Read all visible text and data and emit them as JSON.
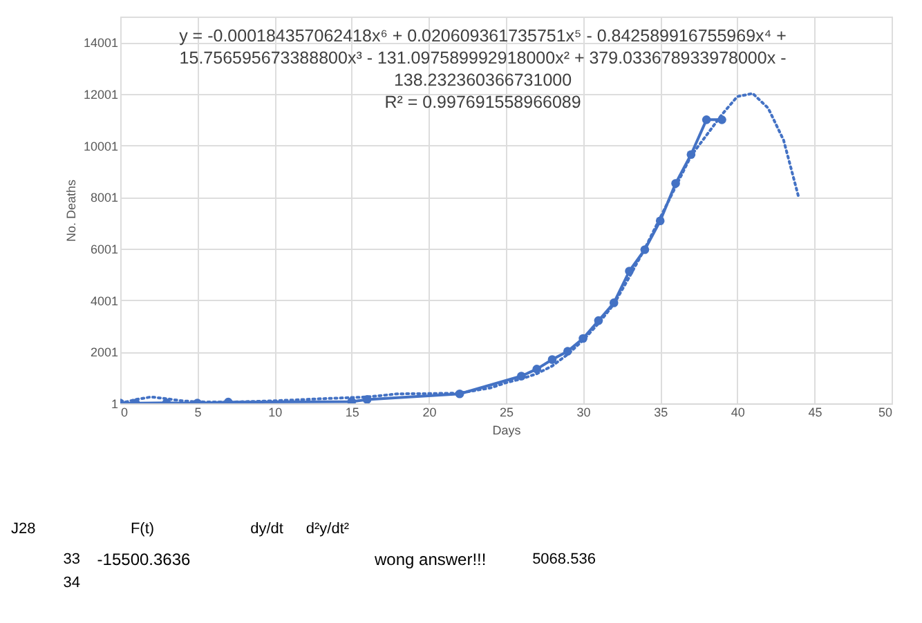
{
  "chart_data": {
    "type": "line",
    "xlabel": "Days",
    "ylabel": "No. Deaths",
    "xlim": [
      0,
      50
    ],
    "xticks": [
      0,
      5,
      10,
      15,
      20,
      25,
      30,
      35,
      40,
      45,
      50
    ],
    "ylim": [
      1,
      15001
    ],
    "yticks": [
      1,
      2001,
      4001,
      6001,
      8001,
      10001,
      12001,
      14001
    ],
    "grid": true,
    "series": [
      {
        "color": "#4472c4",
        "marker": "circle",
        "line_style": "solid",
        "x": [
          0,
          1,
          3,
          5,
          7,
          15,
          16,
          22,
          26,
          27,
          28,
          29,
          30,
          31,
          32,
          33,
          34,
          35,
          36,
          37,
          38,
          39
        ],
        "values": [
          10,
          10,
          20,
          10,
          50,
          70,
          150,
          370,
          1060,
          1330,
          1700,
          2020,
          2520,
          3210,
          3900,
          5130,
          5960,
          7080,
          8530,
          9650,
          11000,
          11000
        ]
      },
      {
        "color": "#4472c4",
        "marker": "none",
        "line_style": "dotted",
        "x": [
          0,
          1,
          2,
          3,
          4,
          5,
          7,
          10,
          13,
          16,
          18,
          20,
          22,
          24,
          25,
          26,
          27,
          28,
          29,
          30,
          31,
          32,
          33,
          34,
          35,
          36,
          37,
          38,
          39,
          40,
          41,
          42,
          43,
          44
        ],
        "values": [
          1,
          150,
          250,
          180,
          100,
          60,
          50,
          100,
          180,
          250,
          370,
          380,
          400,
          600,
          800,
          950,
          1150,
          1450,
          1900,
          2450,
          3100,
          3850,
          4900,
          6000,
          7200,
          8400,
          9600,
          10400,
          11200,
          11900,
          12020,
          11450,
          10210,
          7940
        ]
      }
    ],
    "annotations": [
      "y = -0.000184357062418x⁶ + 0.020609361735751x⁵ - 0.842589916755969x⁴ + 15.756595673388800x³ - 131.097589992918000x² + 379.033678933978000x - 138.232360366731000",
      "R² = 0.997691558966089",
      "J28",
      "F(t)",
      "dy/dt",
      "d²y/dt²",
      "33",
      "-15500.3636",
      "wong answer!!!",
      "5068.536",
      "34"
    ]
  }
}
